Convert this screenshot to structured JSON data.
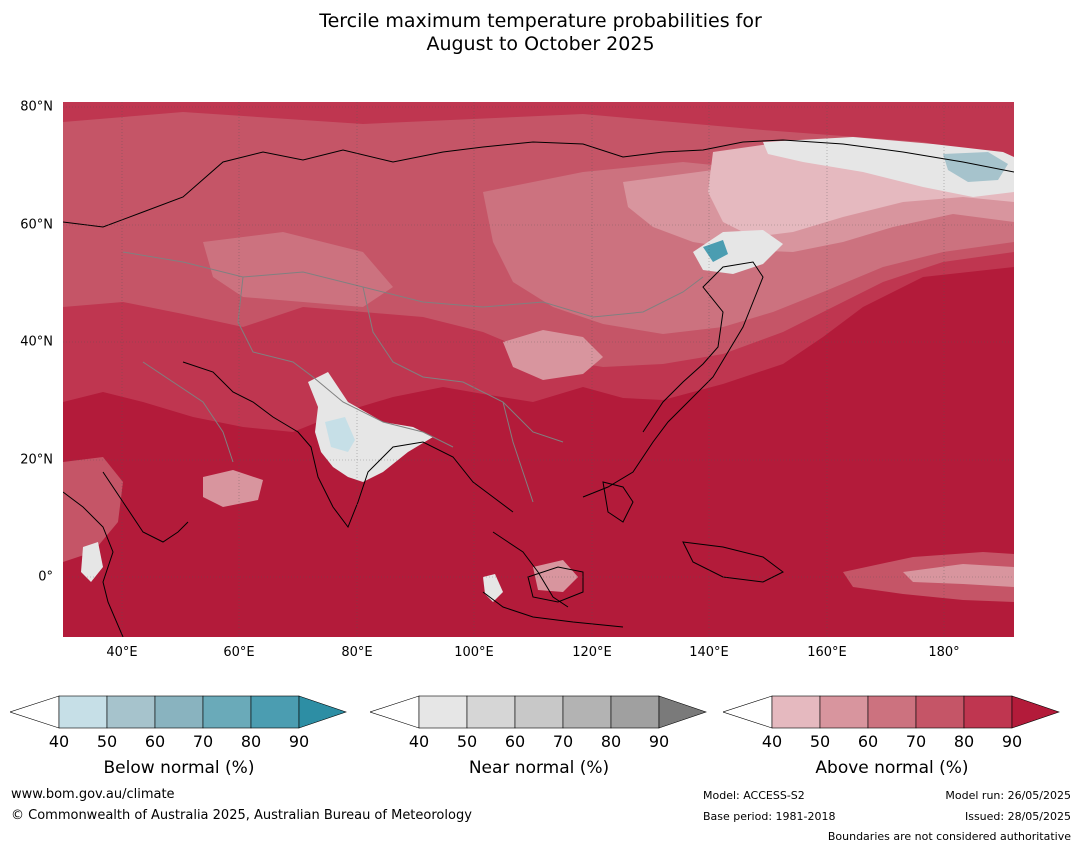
{
  "title": {
    "line1": "Tercile maximum temperature probabilities for",
    "line2": "August to October 2025"
  },
  "map": {
    "projection": "equirectangular",
    "lon_range": [
      30,
      192
    ],
    "lat_range": [
      -10,
      81
    ],
    "lat_ticks": [
      "80°N",
      "60°N",
      "40°N",
      "20°N",
      "0°"
    ],
    "lon_ticks": [
      "40°E",
      "60°E",
      "80°E",
      "100°E",
      "120°E",
      "140°E",
      "160°E",
      "180°"
    ],
    "lat_tick_values": [
      80,
      60,
      40,
      20,
      0
    ],
    "lon_tick_values": [
      40,
      60,
      80,
      100,
      120,
      140,
      160,
      180
    ],
    "dominant_category": "Above normal",
    "colors": {
      "above_90": "#b31b3a",
      "above_80": "#bf3650",
      "above_70": "#c55567",
      "above_60": "#cc727f",
      "above_50": "#d8959e",
      "above_40": "#e5b9bf",
      "near": "#e6e6e6",
      "below_50": "#c6dfe7",
      "below_60": "#a6c3cc",
      "below_80": "#4b9db1",
      "coastline": "#000000",
      "border": "#808080"
    }
  },
  "colorbars": [
    {
      "title": "Below normal (%)",
      "ticks": [
        "40",
        "50",
        "60",
        "70",
        "80",
        "90"
      ],
      "colors": [
        "#ffffff",
        "#c6dfe7",
        "#a6c3cc",
        "#89b3bf",
        "#6aaab9",
        "#4b9db1",
        "#2d8ea4"
      ]
    },
    {
      "title": "Near normal (%)",
      "ticks": [
        "40",
        "50",
        "60",
        "70",
        "80",
        "90"
      ],
      "colors": [
        "#ffffff",
        "#e6e6e6",
        "#d6d6d6",
        "#c8c8c8",
        "#b3b3b3",
        "#a0a0a0",
        "#7a7a7a"
      ]
    },
    {
      "title": "Above normal (%)",
      "ticks": [
        "40",
        "50",
        "60",
        "70",
        "80",
        "90"
      ],
      "colors": [
        "#ffffff",
        "#e5b9bf",
        "#d8959e",
        "#cc727f",
        "#c55567",
        "#bf3650",
        "#b31b3a"
      ]
    }
  ],
  "footer": {
    "website": "www.bom.gov.au/climate",
    "copyright": "© Commonwealth of Australia 2025, Australian Bureau of Meteorology",
    "model": "Model: ACCESS-S2",
    "base_period": "Base period: 1981-2018",
    "model_run": "Model run: 26/05/2025",
    "issued": "Issued: 28/05/2025",
    "disclaimer": "Boundaries are not considered authoritative"
  }
}
